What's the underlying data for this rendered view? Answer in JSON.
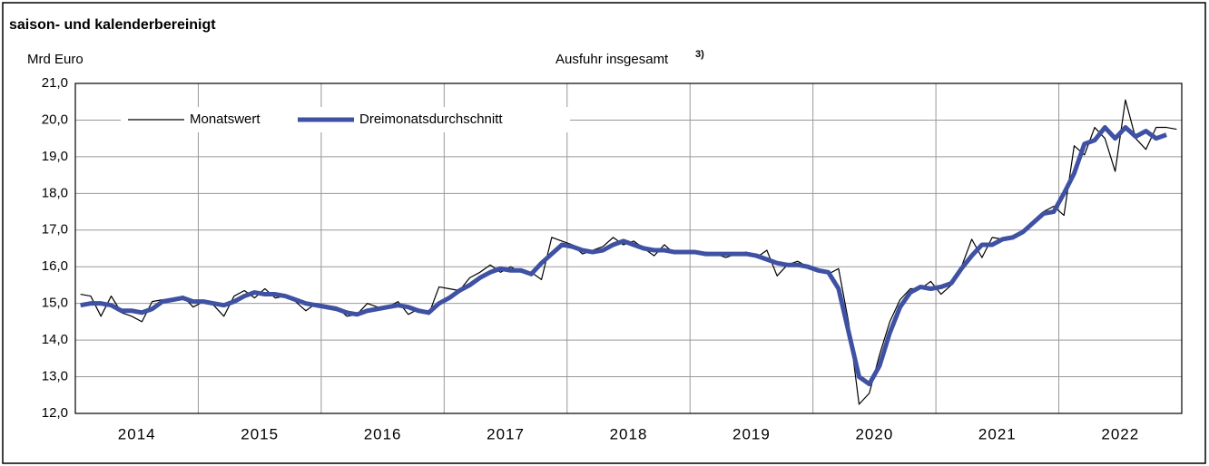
{
  "chart_data": {
    "type": "line",
    "subtitle": "saison- und kalenderbereinigt",
    "ylabel": "Mrd Euro",
    "title": "Ausfuhr insgesamt",
    "title_note": "3)",
    "categories": [
      null,
      null,
      null,
      null,
      null,
      null,
      "2014",
      null,
      null,
      null,
      null,
      null,
      null,
      null,
      null,
      null,
      null,
      null,
      "2015",
      null,
      null,
      null,
      null,
      null,
      null,
      null,
      null,
      null,
      null,
      null,
      "2016",
      null,
      null,
      null,
      null,
      null,
      null,
      null,
      null,
      null,
      null,
      null,
      "2017",
      null,
      null,
      null,
      null,
      null,
      null,
      null,
      null,
      null,
      null,
      null,
      "2018",
      null,
      null,
      null,
      null,
      null,
      null,
      null,
      null,
      null,
      null,
      null,
      "2019",
      null,
      null,
      null,
      null,
      null,
      null,
      null,
      null,
      null,
      null,
      null,
      "2020",
      null,
      null,
      null,
      null,
      null,
      null,
      null,
      null,
      null,
      null,
      null,
      "2021",
      null,
      null,
      null,
      null,
      null,
      null,
      null,
      null,
      null,
      null,
      null,
      "2022",
      null,
      null,
      null,
      null,
      null
    ],
    "series": [
      {
        "name": "Monatswert",
        "color": "#000000",
        "width": 1.2,
        "values": [
          15.25,
          15.2,
          14.65,
          15.2,
          14.75,
          14.65,
          14.5,
          15.05,
          15.1,
          15.1,
          15.2,
          14.9,
          15.05,
          14.95,
          14.65,
          15.2,
          15.35,
          15.15,
          15.4,
          15.15,
          15.2,
          15.05,
          14.8,
          15.0,
          14.95,
          14.9,
          14.65,
          14.7,
          15.0,
          14.9,
          14.9,
          15.05,
          14.7,
          14.85,
          14.7,
          15.45,
          15.4,
          15.35,
          15.7,
          15.85,
          16.05,
          15.85,
          16.0,
          15.85,
          15.85,
          15.65,
          16.8,
          16.7,
          16.6,
          16.35,
          16.45,
          16.55,
          16.8,
          16.6,
          16.7,
          16.5,
          16.3,
          16.6,
          16.35,
          16.4,
          16.4,
          16.4,
          16.35,
          16.25,
          16.35,
          16.4,
          16.25,
          16.45,
          15.75,
          16.05,
          16.15,
          16.0,
          15.95,
          15.8,
          15.95,
          14.45,
          12.25,
          12.55,
          13.6,
          14.5,
          15.1,
          15.4,
          15.4,
          15.6,
          15.25,
          15.5,
          16.0,
          16.75,
          16.25,
          16.8,
          16.75,
          16.8,
          16.95,
          17.15,
          17.5,
          17.65,
          17.4,
          19.3,
          19.05,
          19.8,
          19.5,
          18.6,
          20.55,
          19.5,
          19.2,
          19.8,
          19.8,
          19.75
        ]
      },
      {
        "name": "Dreimonatsdurchschnitt",
        "color": "#3f51a3",
        "width": 5,
        "values": [
          14.95,
          15.0,
          15.0,
          14.95,
          14.8,
          14.8,
          14.75,
          14.85,
          15.05,
          15.1,
          15.15,
          15.05,
          15.05,
          15.0,
          14.95,
          15.05,
          15.2,
          15.3,
          15.25,
          15.25,
          15.2,
          15.1,
          15.0,
          14.95,
          14.9,
          14.85,
          14.75,
          14.7,
          14.8,
          14.85,
          14.9,
          14.95,
          14.9,
          14.8,
          14.75,
          15.0,
          15.15,
          15.35,
          15.5,
          15.7,
          15.85,
          15.95,
          15.9,
          15.9,
          15.8,
          16.1,
          16.35,
          16.6,
          16.55,
          16.45,
          16.4,
          16.45,
          16.6,
          16.7,
          16.6,
          16.5,
          16.45,
          16.45,
          16.4,
          16.4,
          16.4,
          16.35,
          16.35,
          16.35,
          16.35,
          16.35,
          16.3,
          16.2,
          16.1,
          16.05,
          16.05,
          16.0,
          15.9,
          15.85,
          15.4,
          14.2,
          13.0,
          12.8,
          13.3,
          14.2,
          14.9,
          15.3,
          15.45,
          15.4,
          15.45,
          15.55,
          15.95,
          16.3,
          16.6,
          16.6,
          16.75,
          16.8,
          16.95,
          17.2,
          17.45,
          17.5,
          18.0,
          18.55,
          19.35,
          19.45,
          19.8,
          19.5,
          19.8,
          19.55,
          19.7,
          19.5,
          19.6,
          null
        ]
      }
    ],
    "ylim": [
      12,
      21
    ],
    "yticks": [
      {
        "value": 12,
        "label": "12,0"
      },
      {
        "value": 13,
        "label": "13,0"
      },
      {
        "value": 14,
        "label": "14,0"
      },
      {
        "value": 15,
        "label": "15,0"
      },
      {
        "value": 16,
        "label": "16,0"
      },
      {
        "value": 17,
        "label": "17,0"
      },
      {
        "value": 18,
        "label": "18,0"
      },
      {
        "value": 19,
        "label": "19,0"
      },
      {
        "value": 20,
        "label": "20,0"
      },
      {
        "value": 21,
        "label": "21,0"
      }
    ],
    "grid": true,
    "legend": "top-left"
  }
}
